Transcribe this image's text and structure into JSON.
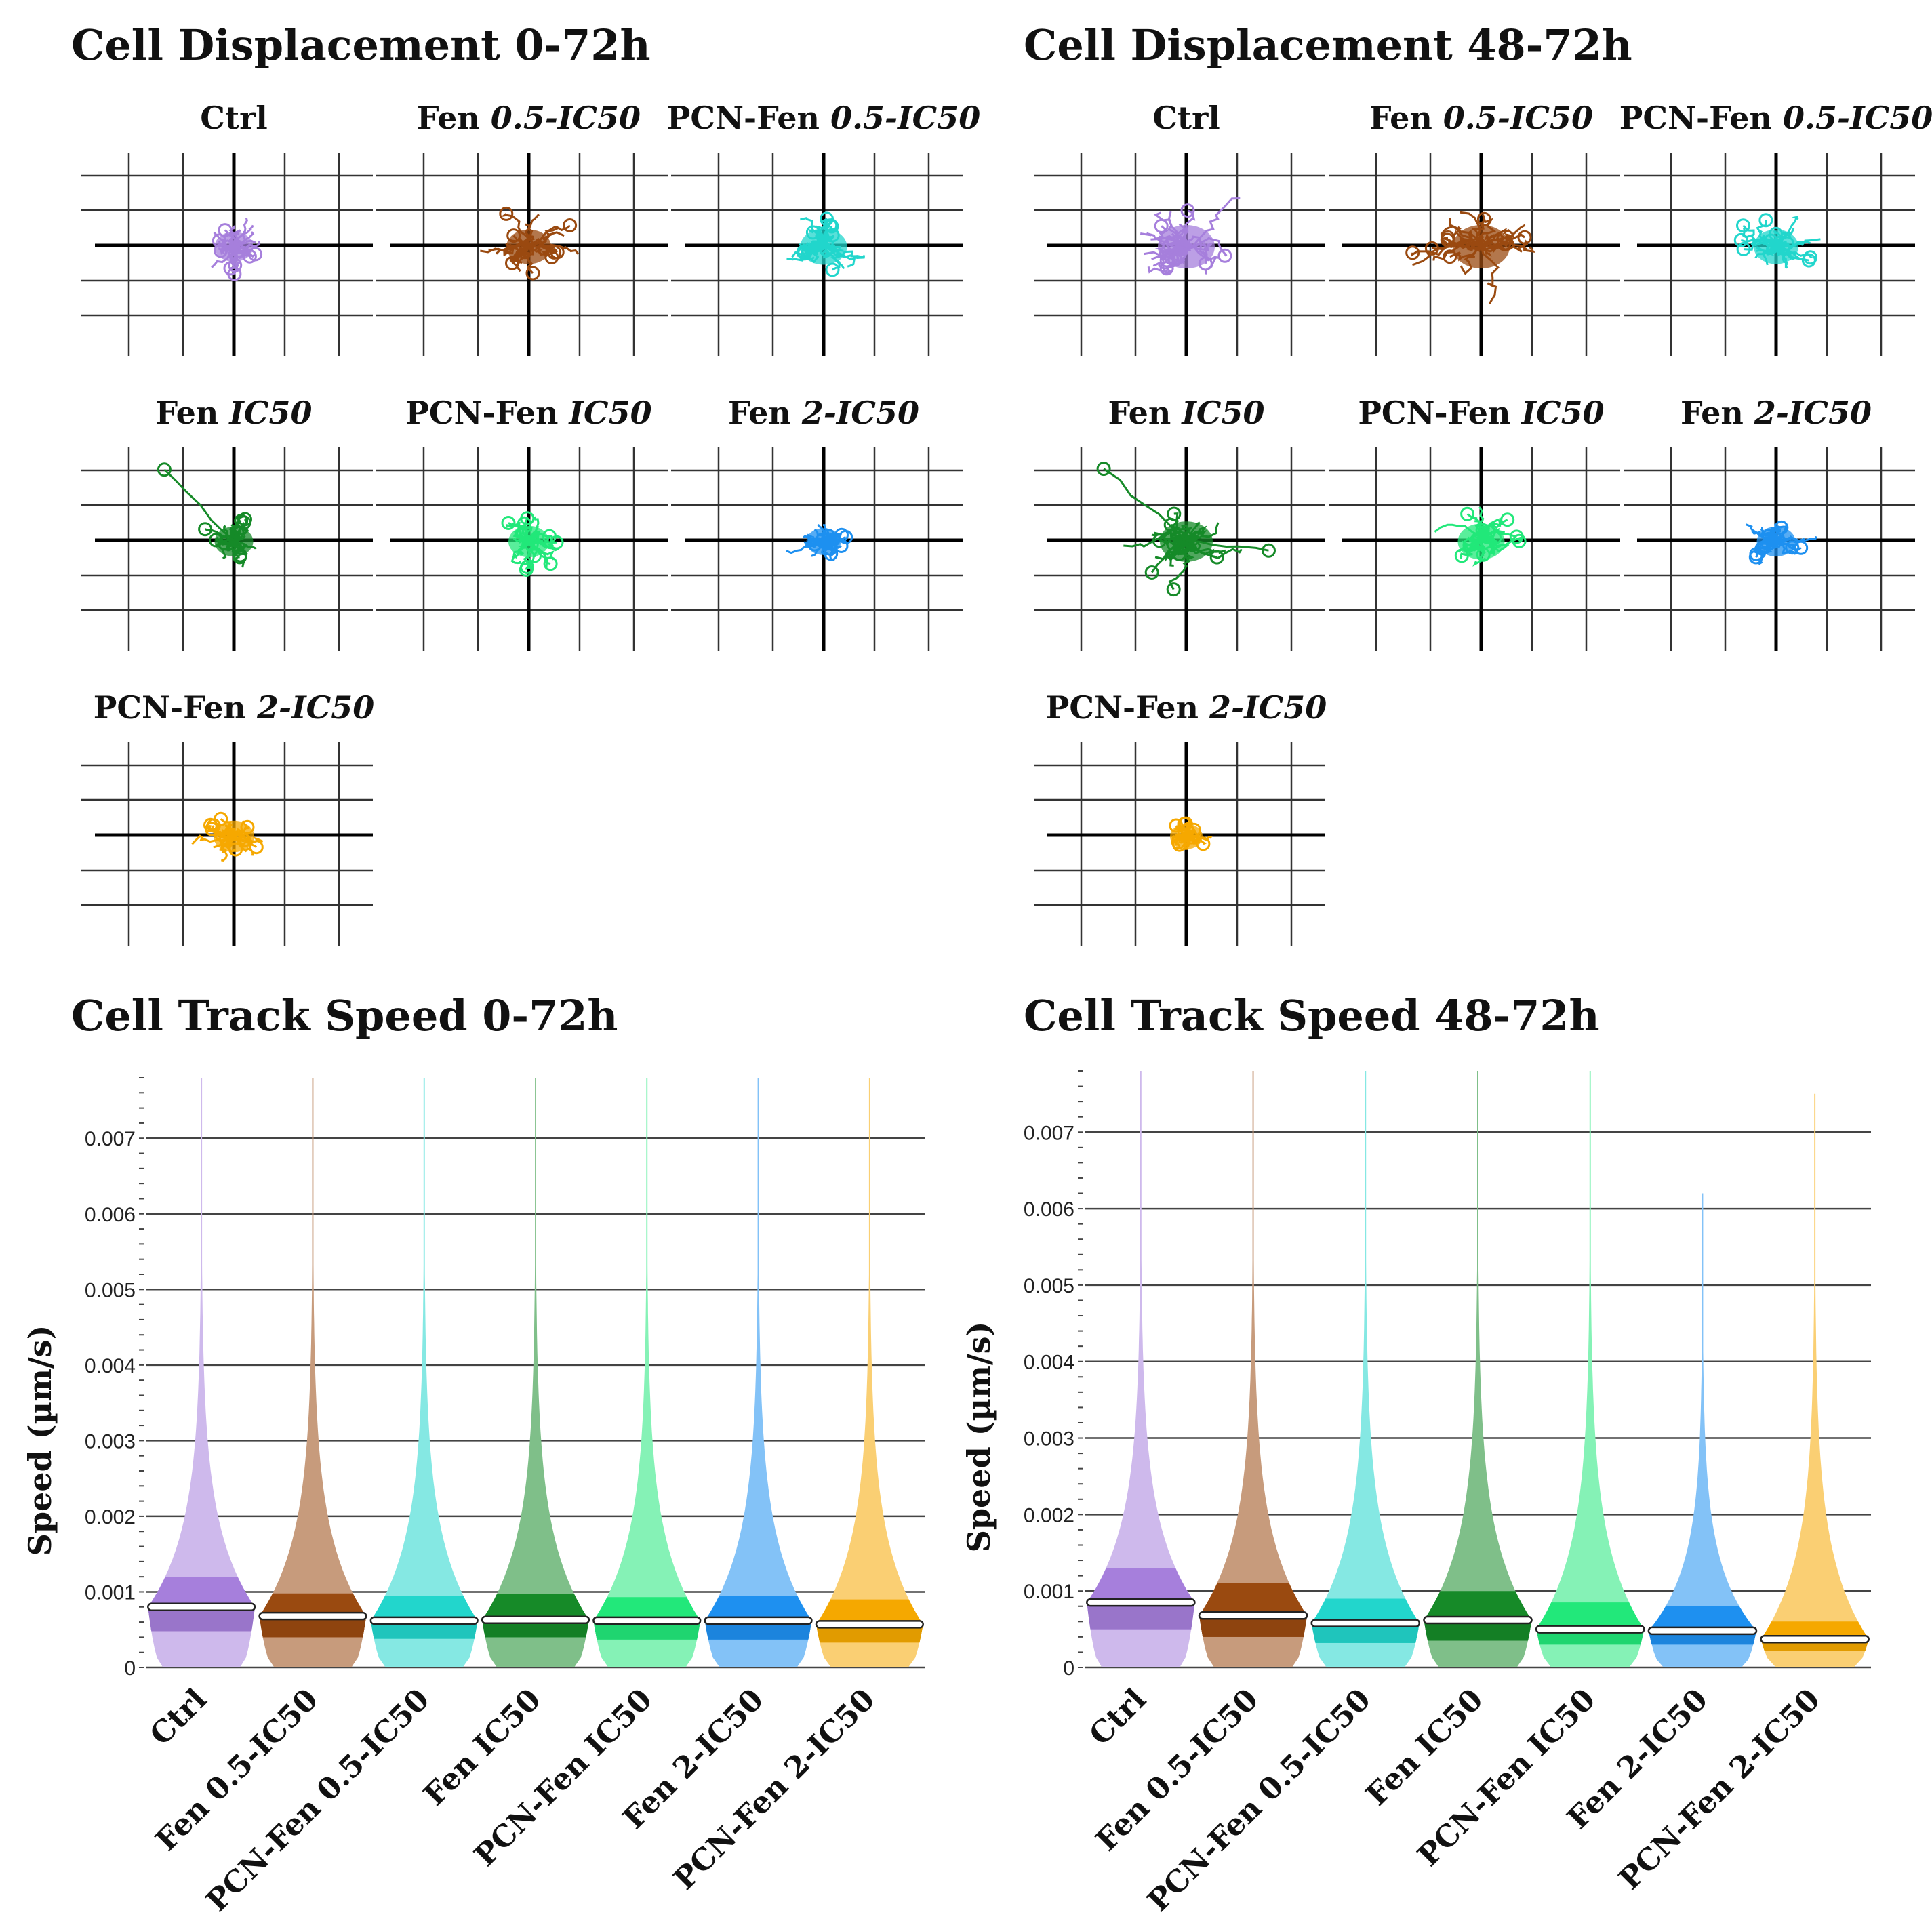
{
  "figure": {
    "displacement_sections": [
      {
        "title": "Cell Displacement 0-72h",
        "panels": [
          {
            "label_plain": "Ctrl",
            "label_italic": "",
            "color": "#a67fdc",
            "spread": 0.55,
            "outlier": 0
          },
          {
            "label_plain": "Fen ",
            "label_italic": "0.5-IC50",
            "color": "#9a4a10",
            "spread": 0.7,
            "outlier": 0
          },
          {
            "label_plain": "PCN-Fen ",
            "label_italic": "0.5-IC50",
            "color": "#22d6cc",
            "spread": 0.75,
            "outlier": 0
          },
          {
            "label_plain": "Fen ",
            "label_italic": "IC50",
            "color": "#168a28",
            "spread": 0.55,
            "outlier": 1
          },
          {
            "label_plain": "PCN-Fen ",
            "label_italic": "IC50",
            "color": "#22e87a",
            "spread": 0.6,
            "outlier": 0
          },
          {
            "label_plain": "Fen ",
            "label_italic": "2-IC50",
            "color": "#1e90f0",
            "spread": 0.45,
            "outlier": 0
          },
          {
            "label_plain": "PCN-Fen ",
            "label_italic": "2-IC50",
            "color": "#f5a800",
            "spread": 0.6,
            "outlier": 0
          }
        ]
      },
      {
        "title": "Cell Displacement 48-72h",
        "panels": [
          {
            "label_plain": "Ctrl",
            "label_italic": "",
            "color": "#a67fdc",
            "spread": 1.0,
            "outlier": 0
          },
          {
            "label_plain": "Fen ",
            "label_italic": "0.5-IC50",
            "color": "#9a4a10",
            "spread": 1.0,
            "outlier": 0
          },
          {
            "label_plain": "PCN-Fen ",
            "label_italic": "0.5-IC50",
            "color": "#22d6cc",
            "spread": 0.7,
            "outlier": 0
          },
          {
            "label_plain": "Fen ",
            "label_italic": "IC50",
            "color": "#168a28",
            "spread": 0.9,
            "outlier": 2
          },
          {
            "label_plain": "PCN-Fen ",
            "label_italic": "IC50",
            "color": "#22e87a",
            "spread": 0.75,
            "outlier": 0
          },
          {
            "label_plain": "Fen ",
            "label_italic": "2-IC50",
            "color": "#1e90f0",
            "spread": 0.55,
            "outlier": 0
          },
          {
            "label_plain": "PCN-Fen ",
            "label_italic": "2-IC50",
            "color": "#f5a800",
            "spread": 0.4,
            "outlier": 0
          }
        ]
      }
    ]
  },
  "chart_data": [
    {
      "type": "violin",
      "title": "Cell Track Speed 0-72h",
      "ylabel": "Speed (µm/s)",
      "ylim": [
        0,
        0.0078
      ],
      "yticks": [
        0,
        0.001,
        0.002,
        0.003,
        0.004,
        0.005,
        0.006,
        0.007
      ],
      "ytick_labels": [
        "0",
        "0.001",
        "0.002",
        "0.003",
        "0.004",
        "0.005",
        "0.006",
        "0.007"
      ],
      "categories": [
        "Ctrl",
        "Fen 0.5-IC50",
        "PCN-Fen 0.5-IC50",
        "Fen IC50",
        "PCN-Fen IC50",
        "Fen 2-IC50",
        "PCN-Fen 2-IC50"
      ],
      "colors": [
        "#a67fdc",
        "#9a4a10",
        "#22d6cc",
        "#168a28",
        "#22e87a",
        "#1e90f0",
        "#f5a800"
      ],
      "medians": [
        0.0008,
        0.00068,
        0.00062,
        0.00063,
        0.00062,
        0.00062,
        0.00057
      ],
      "q1": [
        0.00048,
        0.0004,
        0.00038,
        0.0004,
        0.00037,
        0.00037,
        0.00033
      ],
      "q3": [
        0.0012,
        0.00098,
        0.00095,
        0.00097,
        0.00093,
        0.00095,
        0.0009
      ],
      "max": [
        0.0078,
        0.0078,
        0.0078,
        0.0078,
        0.0078,
        0.0078,
        0.0078
      ]
    },
    {
      "type": "violin",
      "title": "Cell Track Speed 48-72h",
      "ylabel": "Speed (µm/s)",
      "ylim": [
        0,
        0.0078
      ],
      "yticks": [
        0,
        0.001,
        0.002,
        0.003,
        0.004,
        0.005,
        0.006,
        0.007
      ],
      "ytick_labels": [
        "0",
        "0.001",
        "0.002",
        "0.003",
        "0.004",
        "0.005",
        "0.006",
        "0.007"
      ],
      "categories": [
        "Ctrl",
        "Fen 0.5-IC50",
        "PCN-Fen 0.5-IC50",
        "Fen IC50",
        "PCN-Fen IC50",
        "Fen 2-IC50",
        "PCN-Fen 2-IC50"
      ],
      "colors": [
        "#a67fdc",
        "#9a4a10",
        "#22d6cc",
        "#168a28",
        "#22e87a",
        "#1e90f0",
        "#f5a800"
      ],
      "medians": [
        0.00085,
        0.00068,
        0.00058,
        0.00062,
        0.0005,
        0.00048,
        0.00037
      ],
      "q1": [
        0.0005,
        0.0004,
        0.00032,
        0.00035,
        0.0003,
        0.0003,
        0.00022
      ],
      "q3": [
        0.0013,
        0.0011,
        0.0009,
        0.001,
        0.00085,
        0.0008,
        0.0006
      ],
      "max": [
        0.0078,
        0.0078,
        0.0078,
        0.0078,
        0.0078,
        0.0062,
        0.0075
      ]
    }
  ]
}
